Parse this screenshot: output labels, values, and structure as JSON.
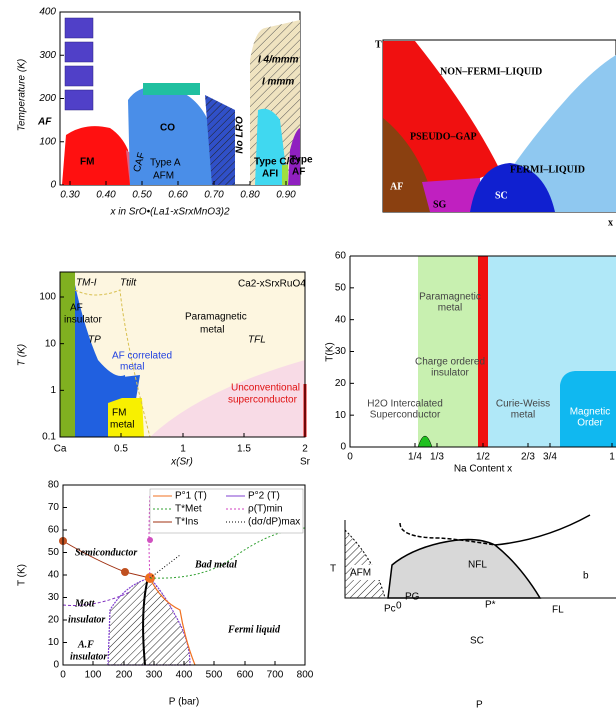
{
  "panel_a": {
    "y_label": "Temperature (K)",
    "x_label": "x in SrO•(La1-xSrxMnO3)2",
    "yticks": [
      "400",
      "300",
      "200",
      "100",
      "0"
    ],
    "xticks": [
      "0.30",
      "0.40",
      "0.50",
      "0.60",
      "0.70",
      "0.80",
      "0.90"
    ],
    "regions": [
      "AF",
      "FM",
      "CAF",
      "CO",
      "Type A",
      "AFM",
      "No LRO",
      "I 4/mmm",
      "I mmm",
      "Type C/C*",
      "AFI",
      "Type",
      "AF"
    ]
  },
  "panel_b": {
    "y_label": "T",
    "x_label": "x",
    "regions": [
      "NON–FERMI–LIQUID",
      "PSEUDO–GAP",
      "FERMI–LIQUID",
      "AF",
      "SG",
      "SC"
    ]
  },
  "panel_c": {
    "title": "Ca2-xSrxRuO4",
    "y_label": "T (K)",
    "x_label": "x(Sr)",
    "yticks": [
      "0.1",
      "1",
      "10",
      "100"
    ],
    "xticks": [
      "Ca",
      "0.5",
      "1",
      "1.5",
      "2"
    ],
    "x_end_label": "Sr",
    "regions": [
      "TM-I",
      "Ttilt",
      "Paramagnetic",
      "metal",
      "AF",
      "insulator",
      "TP",
      "AF correlated",
      "metal",
      "TFL",
      "FM",
      "metal",
      "Unconventional",
      "superconductor"
    ]
  },
  "panel_d": {
    "y_label": "T(K)",
    "x_label": "Na Content  x",
    "yticks": [
      "0",
      "10",
      "20",
      "30",
      "40",
      "50",
      "60"
    ],
    "xticks": [
      "0",
      "1/4",
      "1/3",
      "1/2",
      "2/3",
      "3/4",
      "1"
    ],
    "regions": [
      "Paramagnetic",
      "metal",
      "Charge ordered",
      "insulator",
      "H2O Intercalated",
      "Superconductor",
      "Curie-Weiss",
      "metal",
      "Magnetic",
      "Order"
    ]
  },
  "panel_e": {
    "y_label": "T (K)",
    "x_label": "P (bar)",
    "yticks": [
      "0",
      "10",
      "20",
      "30",
      "40",
      "50",
      "60",
      "70",
      "80"
    ],
    "xticks": [
      "0",
      "100",
      "200",
      "300",
      "400",
      "500",
      "600",
      "700",
      "800"
    ],
    "legend": [
      "P°1 (T)",
      "P°2 (T)",
      "T*Met",
      "ρ(T)min",
      "T*Ins",
      "(dσ/dP)max"
    ],
    "regions": [
      "Semiconductor",
      "Bad metal",
      "Mott",
      "insulator",
      "A.F",
      "insulator",
      "Fermi liquid"
    ]
  },
  "panel_f": {
    "y_label": "T",
    "x_label": "P",
    "xticks": [
      "Pc",
      "0",
      "P*"
    ],
    "regions": [
      "NFL",
      "PG",
      "FL",
      "SC",
      "AFM",
      "b"
    ]
  }
}
